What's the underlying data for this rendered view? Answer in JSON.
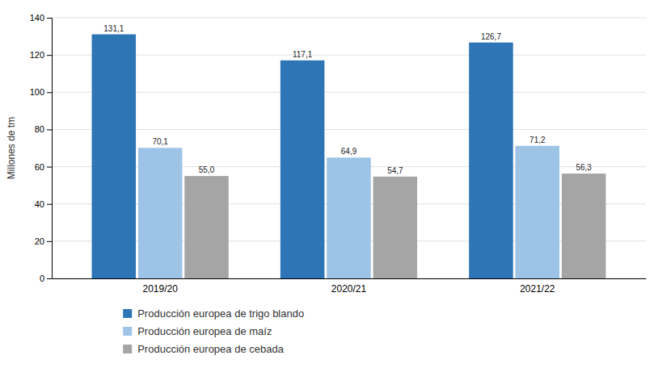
{
  "chart_data": {
    "type": "bar",
    "ylabel": "Millones de tm",
    "categories": [
      "2019/20",
      "2020/21",
      "2021/22"
    ],
    "series": [
      {
        "name": "Producción europea de trigo blando",
        "color": "#2E75B6",
        "values": [
          131.1,
          117.1,
          126.7
        ],
        "value_labels": [
          "131,1",
          "117,1",
          "126,7"
        ]
      },
      {
        "name": "Producción europea de maíz",
        "color": "#9DC3E6",
        "values": [
          70.1,
          64.9,
          71.2
        ],
        "value_labels": [
          "70,1",
          "64,9",
          "71,2"
        ]
      },
      {
        "name": "Producción europea de cebada",
        "color": "#A5A5A5",
        "values": [
          55.0,
          54.7,
          56.3
        ],
        "value_labels": [
          "55,0",
          "54,7",
          "56,3"
        ]
      }
    ],
    "ylim": [
      0,
      140
    ],
    "yticks": [
      0,
      20,
      40,
      60,
      80,
      100,
      120,
      140
    ],
    "grid": true,
    "data_labels": true,
    "legend": "bottom"
  }
}
